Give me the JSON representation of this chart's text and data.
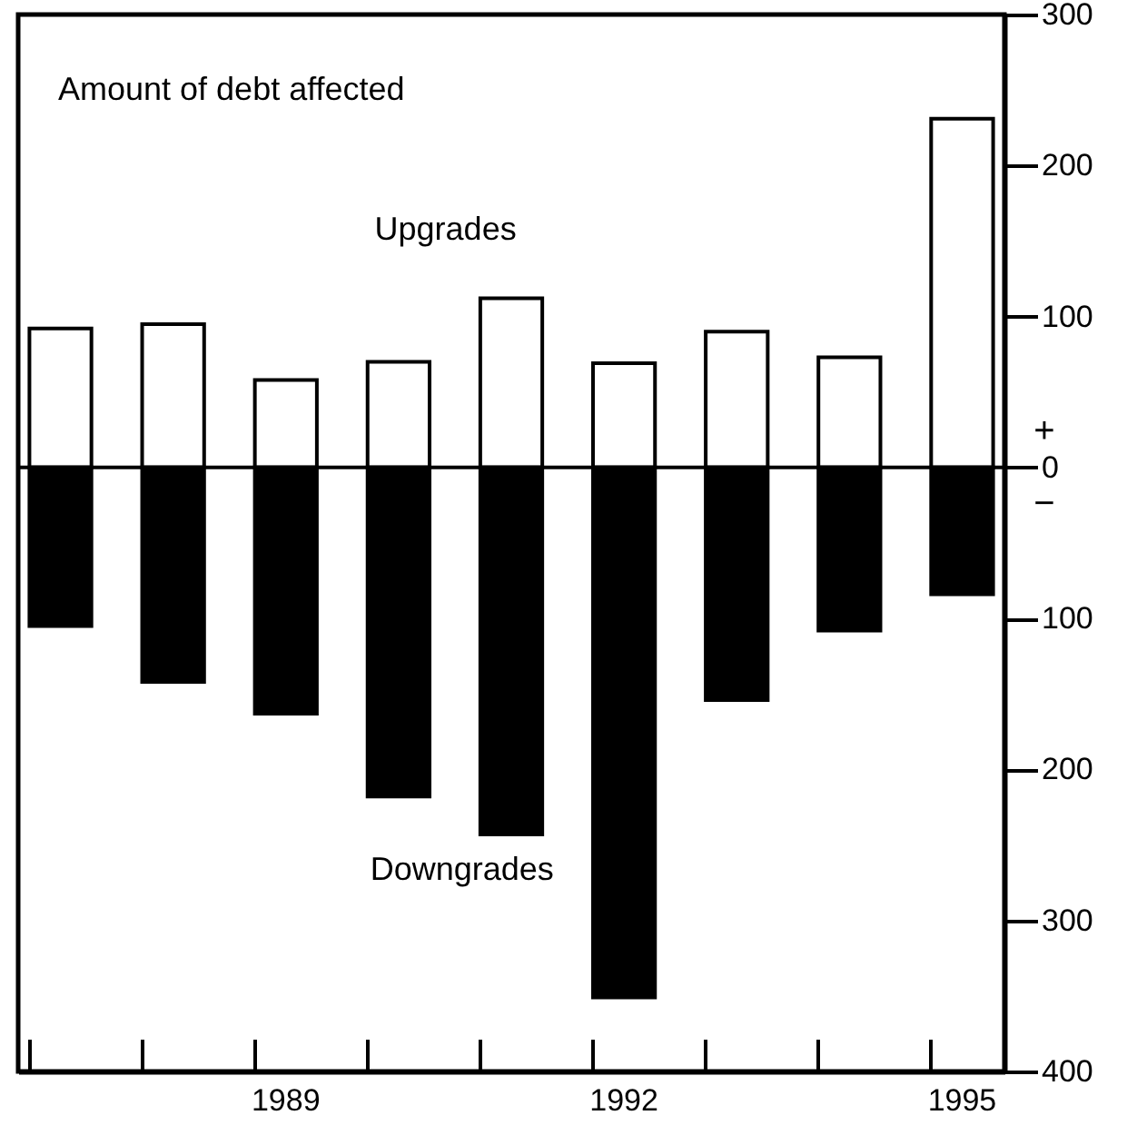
{
  "chart_data": {
    "type": "bar",
    "title": "Amount of debt affected",
    "categories": [
      null,
      null,
      "1989",
      null,
      null,
      "1992",
      null,
      null,
      "1995"
    ],
    "series": [
      {
        "name": "Upgrades",
        "color": "#ffffff",
        "values": [
          92,
          95,
          58,
          70,
          112,
          69,
          90,
          73,
          231
        ]
      },
      {
        "name": "Downgrades",
        "color": "#000000",
        "values": [
          -105,
          -142,
          -163,
          -218,
          -243,
          -351,
          -154,
          -108,
          -84
        ]
      }
    ],
    "ylim": [
      -400,
      300
    ],
    "yticks": [
      300,
      200,
      100,
      {
        "value": 0,
        "label": "0"
      },
      {
        "value": -100,
        "label": "100"
      },
      {
        "value": -200,
        "label": "200"
      },
      {
        "value": -300,
        "label": "300"
      },
      {
        "value": -400,
        "label": "400"
      }
    ],
    "annotations": [
      "+",
      "−"
    ],
    "stacked": true,
    "ref_lines": [
      {
        "axis": "y",
        "value": 0
      }
    ],
    "grid": false
  }
}
